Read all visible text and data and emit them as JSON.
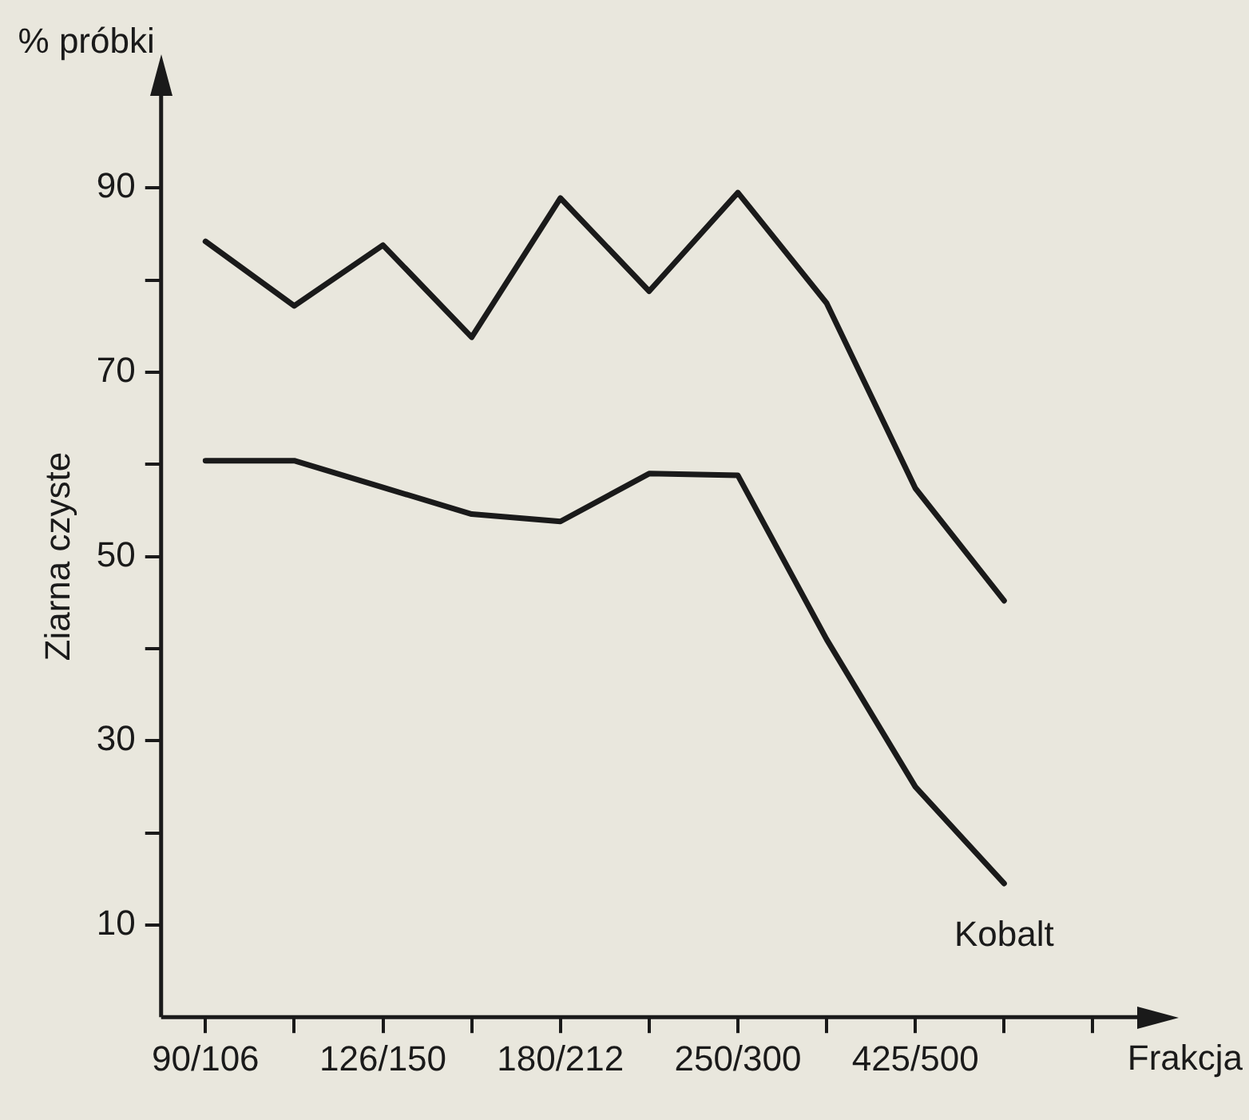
{
  "chart_data": {
    "type": "line",
    "ylabel": "Ziarna czyste",
    "xlabel": "Frakcja",
    "annotations": [
      "% próbki"
    ],
    "categories": [
      "90/106",
      null,
      "126/150",
      null,
      "180/212",
      null,
      "250/300",
      null,
      "425/500",
      null,
      null
    ],
    "series": [
      {
        "color": "#1a1a1a",
        "values": [
          84.2,
          77.2,
          83.8,
          73.8,
          88.9,
          78.8,
          89.5,
          77.5,
          57.4,
          45.2,
          null
        ]
      },
      {
        "name": "Kobalt",
        "color": "#1a1a1a",
        "values": [
          60.4,
          60.4,
          57.5,
          54.6,
          53.8,
          59.0,
          58.8,
          41.0,
          25.0,
          14.5,
          null
        ]
      }
    ],
    "ylim": [
      0,
      100
    ],
    "yticks": [
      10,
      {
        "value": 20,
        "label": null
      },
      30,
      {
        "value": 40,
        "label": null
      },
      50,
      {
        "value": 60,
        "label": null
      },
      70,
      {
        "value": 80,
        "label": null
      },
      90
    ],
    "grid": false,
    "legend": false,
    "marker": "none",
    "line_style": "solid"
  }
}
